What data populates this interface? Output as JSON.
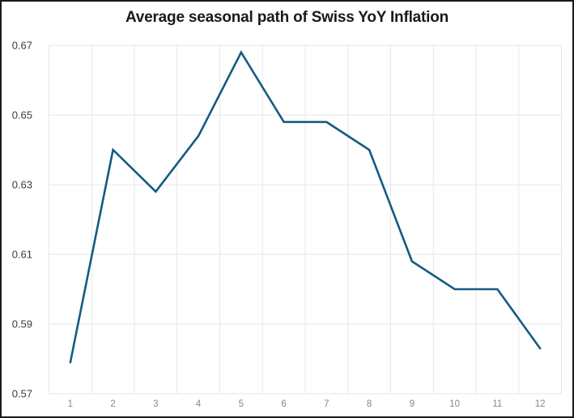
{
  "chart_data": {
    "type": "line",
    "title": "Average seasonal path of Swiss YoY Inflation",
    "xlabel": "",
    "ylabel": "",
    "categories": [
      "1",
      "2",
      "3",
      "4",
      "5",
      "6",
      "7",
      "8",
      "9",
      "10",
      "11",
      "12"
    ],
    "values": [
      0.579,
      0.64,
      0.628,
      0.644,
      0.668,
      0.648,
      0.648,
      0.64,
      0.608,
      0.6,
      0.6,
      0.583
    ],
    "ylim": [
      0.57,
      0.67
    ],
    "ytick_labels": [
      "0.57",
      "0.59",
      "0.61",
      "0.63",
      "0.65",
      "0.67"
    ],
    "grid": true,
    "legend_position": "none",
    "colors": {
      "line": "#165a82",
      "grid": "#e7e7e7",
      "title": "#1a1a1a",
      "y_tick_text": "#3c3c3c",
      "x_tick_text": "#878787",
      "background": "#ffffff",
      "frame_border": "#1a1a1a"
    }
  }
}
